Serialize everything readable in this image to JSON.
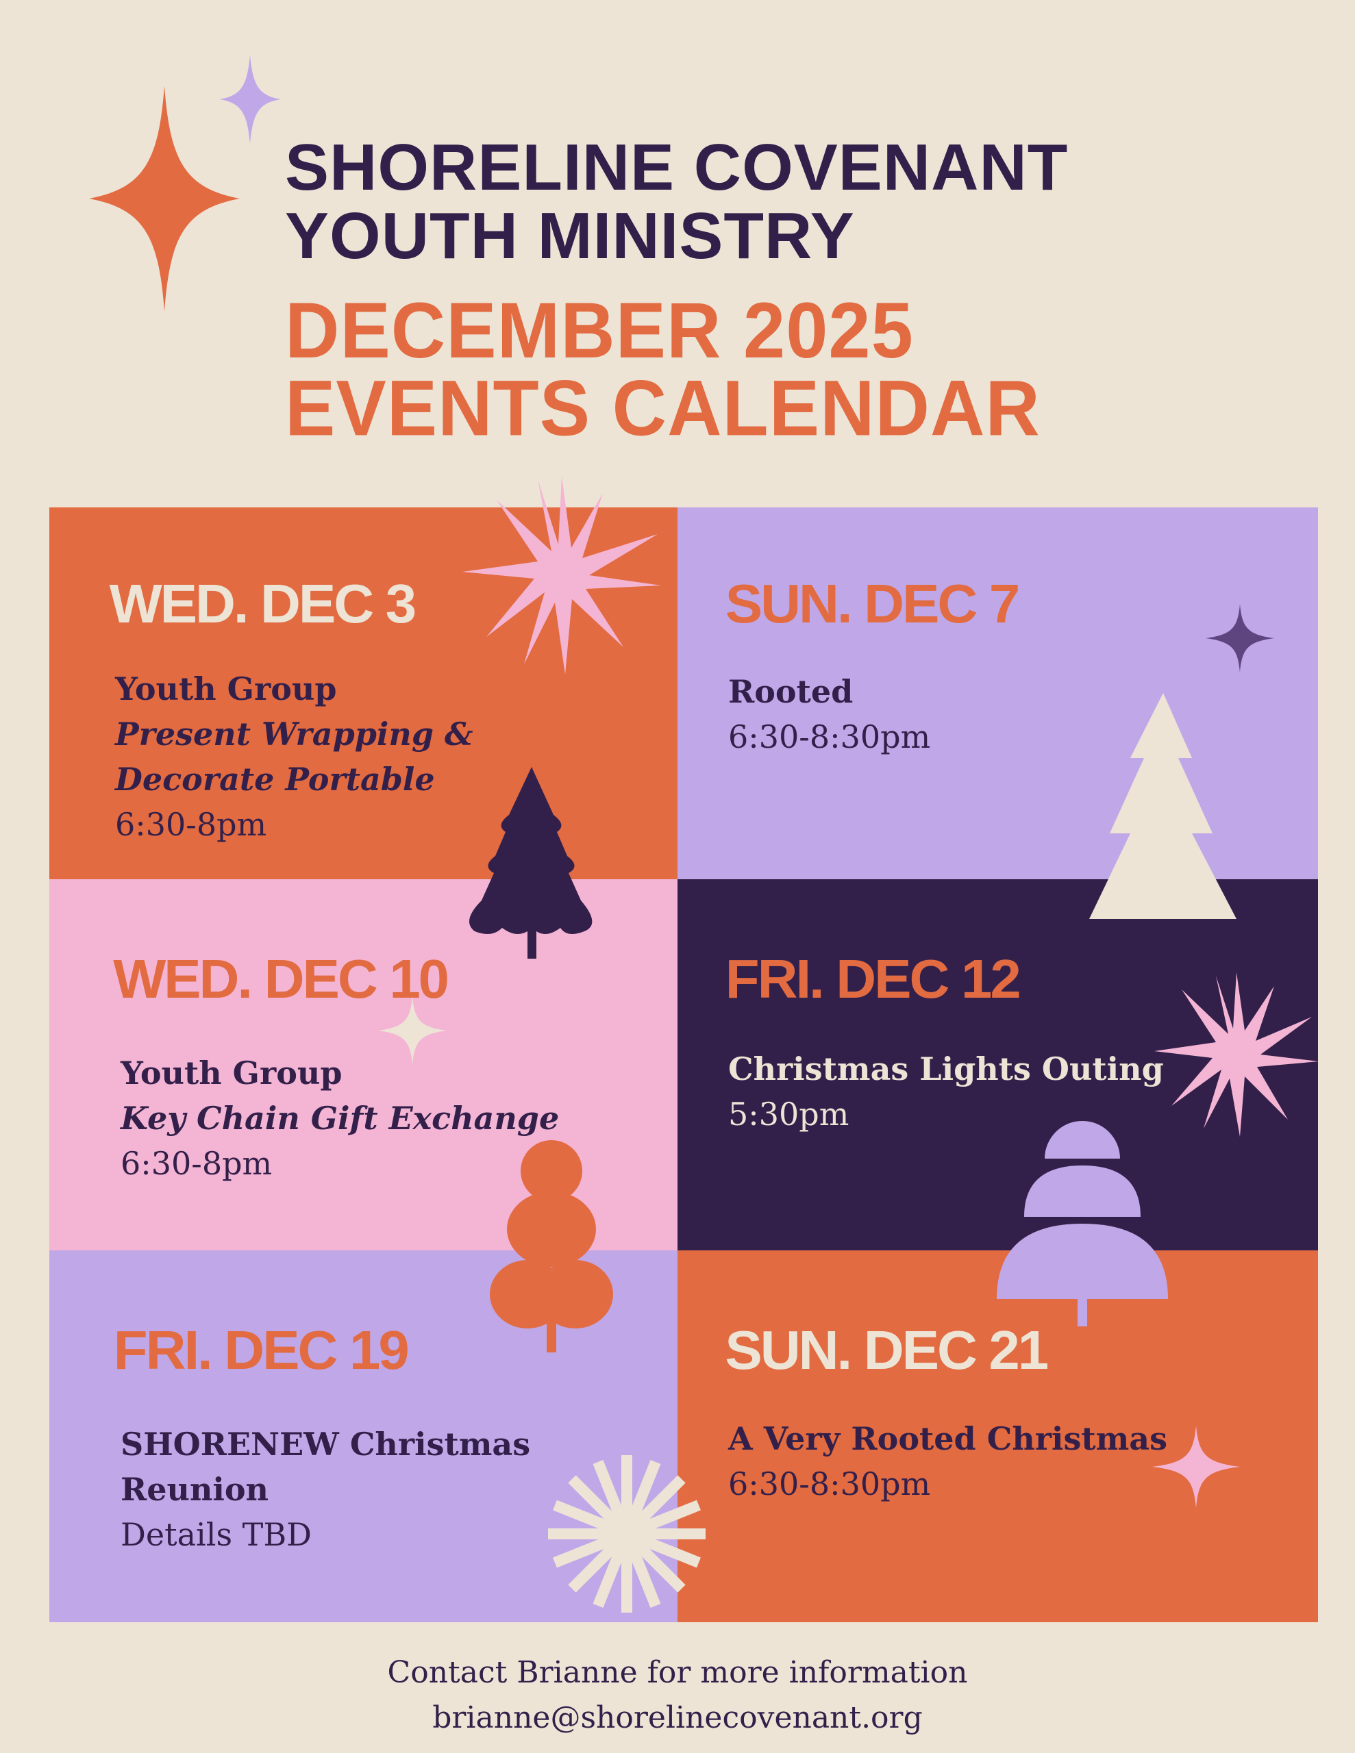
{
  "header": {
    "org_line1": "SHORELINE COVENANT",
    "org_line2": "YOUTH MINISTRY",
    "title_line1": "DECEMBER 2025",
    "title_line2": "EVENTS CALENDAR"
  },
  "colors": {
    "background": "#ede4d6",
    "orange": "#e26b42",
    "lavender": "#c0a8e8",
    "pink": "#f4b5d4",
    "dark_purple": "#33204a",
    "cream": "#ede4d6"
  },
  "events": [
    {
      "date": "WED. DEC 3",
      "title": "Youth Group",
      "subtitle": "Present Wrapping &",
      "subtitle2": "Decorate Portable",
      "time": "6:30-8pm"
    },
    {
      "date": "SUN. DEC 7",
      "title": "Rooted",
      "time": "6:30-8:30pm"
    },
    {
      "date": "WED. DEC 10",
      "title": "Youth Group",
      "subtitle": "Key Chain Gift Exchange",
      "time": "6:30-8pm"
    },
    {
      "date": "FRI. DEC 12",
      "title": "Christmas Lights Outing",
      "time": "5:30pm"
    },
    {
      "date": "FRI. DEC 19",
      "title": "SHORENEW Christmas",
      "title2": "Reunion",
      "time": "Details TBD"
    },
    {
      "date": "SUN. DEC 21",
      "title": "A Very Rooted Christmas",
      "time": "6:30-8:30pm"
    }
  ],
  "footer": {
    "line1": "Contact Brianne for more information",
    "email": "brianne@shorelinecovenant.org"
  }
}
